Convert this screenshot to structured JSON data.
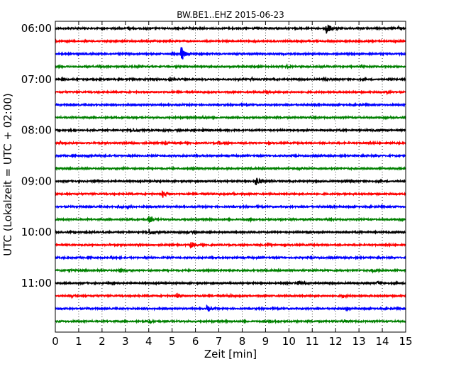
{
  "chart_data": {
    "type": "line",
    "title": "BW.BE1..EHZ 2015-06-23",
    "xlabel": "Zeit  [min]",
    "ylabel": "UTC (Lokalzeit = UTC + 02:00)",
    "xlim": [
      0,
      15
    ],
    "x_ticks": [
      "0",
      "1",
      "2",
      "3",
      "4",
      "5",
      "6",
      "7",
      "8",
      "9",
      "10",
      "11",
      "12",
      "13",
      "14",
      "15"
    ],
    "y_tick_labels": [
      "06:00",
      "07:00",
      "08:00",
      "09:00",
      "10:00",
      "11:00"
    ],
    "grid": true,
    "trace_colors": [
      "#000000",
      "#ff0000",
      "#0000ff",
      "#008000"
    ],
    "traces": [
      {
        "start": "06:00",
        "events": [
          [
            3.1,
            0.4
          ],
          [
            11.6,
            2.6
          ],
          [
            14.7,
            0.6
          ]
        ]
      },
      {
        "start": "06:15",
        "events": [
          [
            14.5,
            0.4
          ]
        ]
      },
      {
        "start": "06:30",
        "events": [
          [
            5.4,
            2.6
          ]
        ]
      },
      {
        "start": "06:45",
        "events": [
          [
            9.9,
            0.4
          ]
        ]
      },
      {
        "start": "07:00",
        "events": [
          [
            0.3,
            0.5
          ],
          [
            4.9,
            0.7
          ],
          [
            8.4,
            0.5
          ],
          [
            11.5,
            0.4
          ]
        ]
      },
      {
        "start": "07:15",
        "events": [
          [
            9.0,
            0.7
          ],
          [
            14.2,
            0.4
          ]
        ]
      },
      {
        "start": "07:30",
        "events": []
      },
      {
        "start": "07:45",
        "events": [
          [
            6.3,
            0.3
          ]
        ]
      },
      {
        "start": "08:00",
        "events": [
          [
            3.3,
            0.7
          ],
          [
            6.3,
            0.4
          ]
        ]
      },
      {
        "start": "08:15",
        "events": [
          [
            0.2,
            0.5
          ],
          [
            3.2,
            0.4
          ],
          [
            4.7,
            0.4
          ],
          [
            7.0,
            0.4
          ]
        ]
      },
      {
        "start": "08:30",
        "events": [
          [
            1.4,
            0.3
          ]
        ]
      },
      {
        "start": "08:45",
        "events": [
          [
            2.9,
            0.3
          ],
          [
            10.4,
            0.3
          ]
        ]
      },
      {
        "start": "09:00",
        "events": [
          [
            1.6,
            0.3
          ],
          [
            8.6,
            1.8
          ],
          [
            12.4,
            0.5
          ]
        ]
      },
      {
        "start": "09:15",
        "events": [
          [
            4.6,
            1.1
          ],
          [
            7.6,
            0.3
          ]
        ]
      },
      {
        "start": "09:30",
        "events": [
          [
            2.7,
            0.5
          ],
          [
            3.1,
            0.4
          ]
        ]
      },
      {
        "start": "09:45",
        "events": [
          [
            4.0,
            1.1
          ],
          [
            8.3,
            0.5
          ]
        ]
      },
      {
        "start": "10:00",
        "events": [
          [
            1.5,
            0.3
          ],
          [
            4.0,
            1.0
          ],
          [
            5.6,
            0.4
          ],
          [
            10.8,
            0.3
          ]
        ]
      },
      {
        "start": "10:15",
        "events": [
          [
            5.8,
            0.9
          ],
          [
            9.1,
            0.5
          ]
        ]
      },
      {
        "start": "10:30",
        "events": [
          [
            2.4,
            0.3
          ]
        ]
      },
      {
        "start": "10:45",
        "events": [
          [
            0.6,
            0.4
          ],
          [
            2.8,
            0.5
          ],
          [
            13.6,
            0.4
          ]
        ]
      },
      {
        "start": "11:00",
        "events": [
          [
            10.4,
            0.7
          ],
          [
            13.8,
            0.5
          ]
        ]
      },
      {
        "start": "11:15",
        "events": [
          [
            0.6,
            0.4
          ],
          [
            5.2,
            0.6
          ],
          [
            7.4,
            0.4
          ],
          [
            12.3,
            0.5
          ]
        ]
      },
      {
        "start": "11:30",
        "events": [
          [
            6.5,
            1.1
          ],
          [
            12.5,
            0.5
          ]
        ]
      },
      {
        "start": "11:45",
        "events": [
          [
            4.0,
            0.4
          ],
          [
            9.2,
            0.4
          ],
          [
            12.4,
            0.5
          ]
        ]
      }
    ]
  }
}
